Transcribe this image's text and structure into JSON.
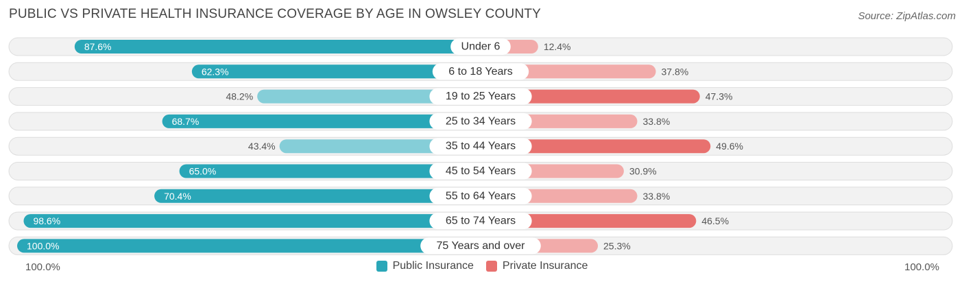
{
  "header": {
    "title": "PUBLIC VS PRIVATE HEALTH INSURANCE COVERAGE BY AGE IN OWSLEY COUNTY",
    "source": "Source: ZipAtlas.com"
  },
  "axis": {
    "left_label": "100.0%",
    "right_label": "100.0%"
  },
  "legend": {
    "public_label": "Public Insurance",
    "private_label": "Private Insurance"
  },
  "colors": {
    "public_strong": "#2aa7b8",
    "public_light": "#85ced8",
    "private_strong": "#e8716f",
    "private_light": "#f2abaa",
    "track": "#f2f2f2",
    "track_border": "#dddddd"
  },
  "chart_data": {
    "type": "bar",
    "orientation": "horizontal-diverging",
    "categories": [
      "Under 6",
      "6 to 18 Years",
      "19 to 25 Years",
      "25 to 34 Years",
      "35 to 44 Years",
      "45 to 54 Years",
      "55 to 64 Years",
      "65 to 74 Years",
      "75 Years and over"
    ],
    "series": [
      {
        "name": "Public Insurance",
        "values": [
          87.6,
          62.3,
          48.2,
          68.7,
          43.4,
          65.0,
          70.4,
          98.6,
          100.0
        ],
        "labels": [
          "87.6%",
          "62.3%",
          "48.2%",
          "68.7%",
          "43.4%",
          "65.0%",
          "70.4%",
          "98.6%",
          "100.0%"
        ]
      },
      {
        "name": "Private Insurance",
        "values": [
          12.4,
          37.8,
          47.3,
          33.8,
          49.6,
          30.9,
          33.8,
          46.5,
          25.3
        ],
        "labels": [
          "12.4%",
          "37.8%",
          "47.3%",
          "33.8%",
          "49.6%",
          "30.9%",
          "33.8%",
          "46.5%",
          "25.3%"
        ]
      }
    ],
    "xlim": [
      -100,
      100
    ],
    "legend_position": "bottom-center"
  }
}
